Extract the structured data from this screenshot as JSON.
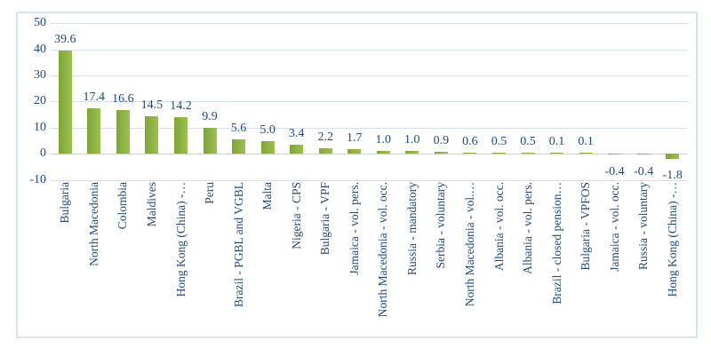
{
  "chart_data": {
    "type": "bar",
    "title": "",
    "xlabel": "",
    "ylabel": "",
    "categories": [
      "Bulgaria",
      "North Macedonia",
      "Colombia",
      "Maldives",
      "Hong Kong (China) -…",
      "Peru",
      "Brazil - PGBL and VGBL",
      "Malta",
      "Nigeria - CPS",
      "Bulgaria - VPF",
      "Jamaica - vol. pers.",
      "North Macedonia - vol. occ.",
      "Russia - mandatory",
      "Serbia - voluntary",
      "North Macedonia - vol.…",
      "Albania - vol. occ.",
      "Albania - vol. pers.",
      "Brazil - closed pension…",
      "Bulgaria - VPFOS",
      "Jamaica - vol. occ.",
      "Russia - voluntary",
      "Hong Kong (China) -…"
    ],
    "values": [
      39.6,
      17.4,
      16.6,
      14.5,
      14.2,
      9.9,
      5.6,
      5.0,
      3.4,
      2.2,
      1.7,
      1.0,
      1.0,
      0.9,
      0.6,
      0.5,
      0.5,
      0.1,
      0.1,
      -0.4,
      -0.4,
      -1.8
    ],
    "data_label_decimals": 1,
    "yticks": [
      50,
      40,
      30,
      20,
      10,
      0,
      -10
    ],
    "ylim": [
      -10,
      50
    ],
    "grid": true,
    "legend": false,
    "bar_gradient_left": "#7FA439",
    "bar_gradient_right": "#9CC14E",
    "label_color": "#1F497D",
    "gridline_color": "#D5DFF0",
    "axis_line_color": "#C2D1E8",
    "frame_border_color": "#DAE3F2"
  }
}
